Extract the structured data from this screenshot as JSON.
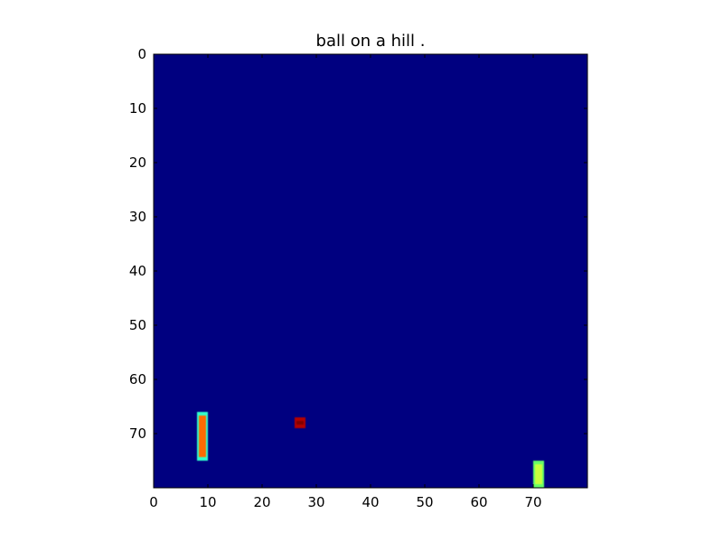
{
  "title": "ball on a hill .",
  "chart_data": {
    "type": "heatmap",
    "title": "ball on a hill .",
    "xlabel": "",
    "ylabel": "",
    "grid_size": [
      80,
      80
    ],
    "xlim": [
      0,
      80
    ],
    "ylim": [
      80,
      0
    ],
    "x_ticks": [
      0,
      10,
      20,
      30,
      40,
      50,
      60,
      70
    ],
    "y_ticks": [
      0,
      10,
      20,
      30,
      40,
      50,
      60,
      70
    ],
    "background_color": "#000080",
    "objects": [
      {
        "id": "left-paddle",
        "x": 8,
        "y": 66,
        "width": 2,
        "height": 9,
        "body_color": "#ff6a00",
        "edge_color": "#33ffcc"
      },
      {
        "id": "ball",
        "x": 26,
        "y": 67,
        "width": 2,
        "height": 2,
        "body_color": "#800000",
        "edge_color": "#b30000"
      },
      {
        "id": "right-paddle",
        "x": 70,
        "y": 75,
        "width": 2,
        "height": 5,
        "body_color": "#c8ff3c",
        "edge_color": "#66ff66"
      }
    ]
  }
}
